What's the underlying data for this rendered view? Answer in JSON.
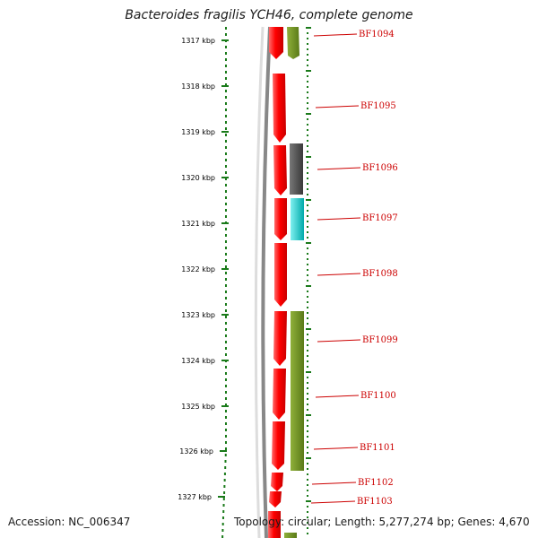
{
  "title": "Bacteroides fragilis YCH46, complete genome",
  "footer": {
    "accession": "Accession: NC_006347",
    "summary": "Topology: circular; Length: 5,277,274 bp; Genes: 4,670"
  },
  "kbp_ticks": [
    "1317 kbp",
    "1318 kbp",
    "1319 kbp",
    "1320 kbp",
    "1321 kbp",
    "1322 kbp",
    "1323 kbp",
    "1324 kbp",
    "1325 kbp",
    "1326 kbp",
    "1327 kbp"
  ],
  "genes": [
    "BF1094",
    "BF1095",
    "BF1096",
    "BF1097",
    "BF1098",
    "BF1099",
    "BF1100",
    "BF1101",
    "BF1102",
    "BF1103"
  ],
  "colors": {
    "cds_track": "#ff0000",
    "backbone": "#888888",
    "tick_green": "#1a7a1a",
    "label_red": "#cc0000",
    "feature_olive": "#6b8e23",
    "feature_gray": "#555555",
    "feature_cyan": "#00c8c8"
  }
}
